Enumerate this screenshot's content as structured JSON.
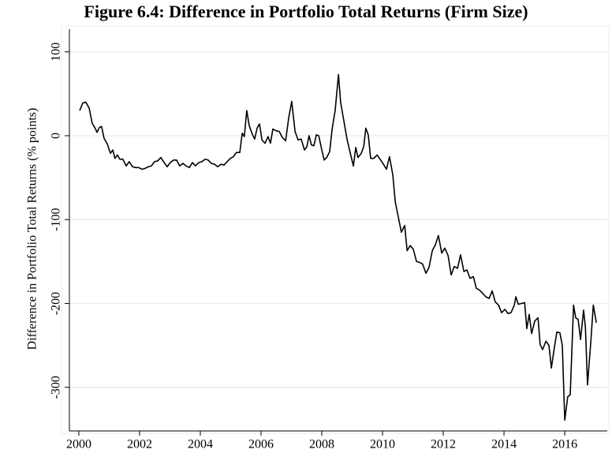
{
  "chart_data": {
    "type": "line",
    "title": "Figure 6.4: Difference in Portfolio Total Returns (Firm Size)",
    "ylabel": "Difference in Portfolio Total Returns (% points)",
    "xlim": [
      1999.69,
      2017.4
    ],
    "xticks": [
      2000,
      2002,
      2004,
      2006,
      2008,
      2010,
      2012,
      2014,
      2016
    ],
    "ylim": [
      -352,
      127
    ],
    "yticks": [
      100,
      0,
      -100,
      -200,
      -300
    ],
    "grid": true,
    "series": [
      {
        "color": "#000000",
        "x": [
          2000.03,
          2000.13,
          2000.23,
          2000.34,
          2000.44,
          2000.55,
          2000.6,
          2000.68,
          2000.75,
          2000.83,
          2000.94,
          2001.04,
          2001.12,
          2001.19,
          2001.27,
          2001.35,
          2001.45,
          2001.56,
          2001.66,
          2001.77,
          2001.87,
          2001.97,
          2002.08,
          2002.18,
          2002.29,
          2002.39,
          2002.49,
          2002.6,
          2002.7,
          2002.81,
          2002.91,
          2003.01,
          2003.12,
          2003.22,
          2003.32,
          2003.43,
          2003.53,
          2003.64,
          2003.74,
          2003.84,
          2003.95,
          2004.05,
          2004.16,
          2004.26,
          2004.36,
          2004.47,
          2004.57,
          2004.68,
          2004.78,
          2004.88,
          2004.99,
          2005.09,
          2005.19,
          2005.3,
          2005.38,
          2005.45,
          2005.53,
          2005.61,
          2005.71,
          2005.79,
          2005.87,
          2005.95,
          2006.03,
          2006.13,
          2006.23,
          2006.31,
          2006.39,
          2006.49,
          2006.6,
          2006.7,
          2006.81,
          2006.91,
          2007.01,
          2007.12,
          2007.22,
          2007.32,
          2007.43,
          2007.51,
          2007.58,
          2007.66,
          2007.74,
          2007.82,
          2007.9,
          2008.0,
          2008.08,
          2008.16,
          2008.26,
          2008.34,
          2008.44,
          2008.55,
          2008.62,
          2008.73,
          2008.83,
          2008.94,
          2009.04,
          2009.12,
          2009.19,
          2009.3,
          2009.38,
          2009.45,
          2009.53,
          2009.61,
          2009.71,
          2009.82,
          2009.92,
          2010.03,
          2010.13,
          2010.23,
          2010.34,
          2010.42,
          2010.52,
          2010.62,
          2010.73,
          2010.81,
          2010.91,
          2011.01,
          2011.12,
          2011.22,
          2011.32,
          2011.43,
          2011.53,
          2011.64,
          2011.74,
          2011.84,
          2011.95,
          2012.05,
          2012.16,
          2012.26,
          2012.36,
          2012.47,
          2012.57,
          2012.68,
          2012.78,
          2012.88,
          2012.99,
          2013.09,
          2013.19,
          2013.3,
          2013.4,
          2013.51,
          2013.61,
          2013.71,
          2013.82,
          2013.92,
          2014.03,
          2014.13,
          2014.23,
          2014.34,
          2014.39,
          2014.47,
          2014.57,
          2014.68,
          2014.75,
          2014.83,
          2014.91,
          2015.01,
          2015.12,
          2015.19,
          2015.27,
          2015.38,
          2015.48,
          2015.56,
          2015.64,
          2015.74,
          2015.84,
          2015.92,
          2016.0,
          2016.1,
          2016.18,
          2016.29,
          2016.36,
          2016.44,
          2016.52,
          2016.62,
          2016.68,
          2016.75,
          2016.86,
          2016.94,
          2017.04
        ],
        "values": [
          30,
          39,
          40,
          33,
          15,
          8,
          4,
          10,
          11,
          -3,
          -10,
          -21,
          -17,
          -27,
          -23,
          -28,
          -28,
          -36,
          -31,
          -37,
          -38,
          -38,
          -40,
          -39,
          -37,
          -36,
          -31,
          -30,
          -26,
          -32,
          -37,
          -32,
          -29,
          -29,
          -36,
          -33,
          -36,
          -38,
          -32,
          -36,
          -32,
          -31,
          -28,
          -29,
          -33,
          -34,
          -37,
          -34,
          -35,
          -31,
          -27,
          -25,
          -20,
          -20,
          3,
          -1,
          30,
          12,
          2,
          -4,
          9,
          14,
          -5,
          -9,
          -1,
          -9,
          8,
          6,
          5,
          -2,
          -6,
          21,
          41,
          5,
          -5,
          -4,
          -17,
          -13,
          0,
          -11,
          -12,
          1,
          0,
          -17,
          -29,
          -26,
          -19,
          8,
          30,
          73,
          40,
          17,
          -4,
          -21,
          -36,
          -14,
          -26,
          -21,
          -13,
          9,
          1,
          -27,
          -27,
          -23,
          -28,
          -34,
          -40,
          -25,
          -47,
          -79,
          -97,
          -115,
          -107,
          -137,
          -131,
          -135,
          -150,
          -151,
          -153,
          -164,
          -157,
          -137,
          -130,
          -119,
          -140,
          -134,
          -143,
          -166,
          -156,
          -158,
          -142,
          -162,
          -160,
          -170,
          -168,
          -182,
          -184,
          -188,
          -192,
          -194,
          -185,
          -198,
          -202,
          -211,
          -207,
          -212,
          -211,
          -202,
          -192,
          -201,
          -200,
          -199,
          -230,
          -213,
          -236,
          -221,
          -217,
          -249,
          -255,
          -245,
          -250,
          -277,
          -257,
          -234,
          -235,
          -250,
          -339,
          -311,
          -309,
          -202,
          -217,
          -219,
          -243,
          -208,
          -228,
          -297,
          -245,
          -202,
          -223
        ]
      }
    ]
  }
}
